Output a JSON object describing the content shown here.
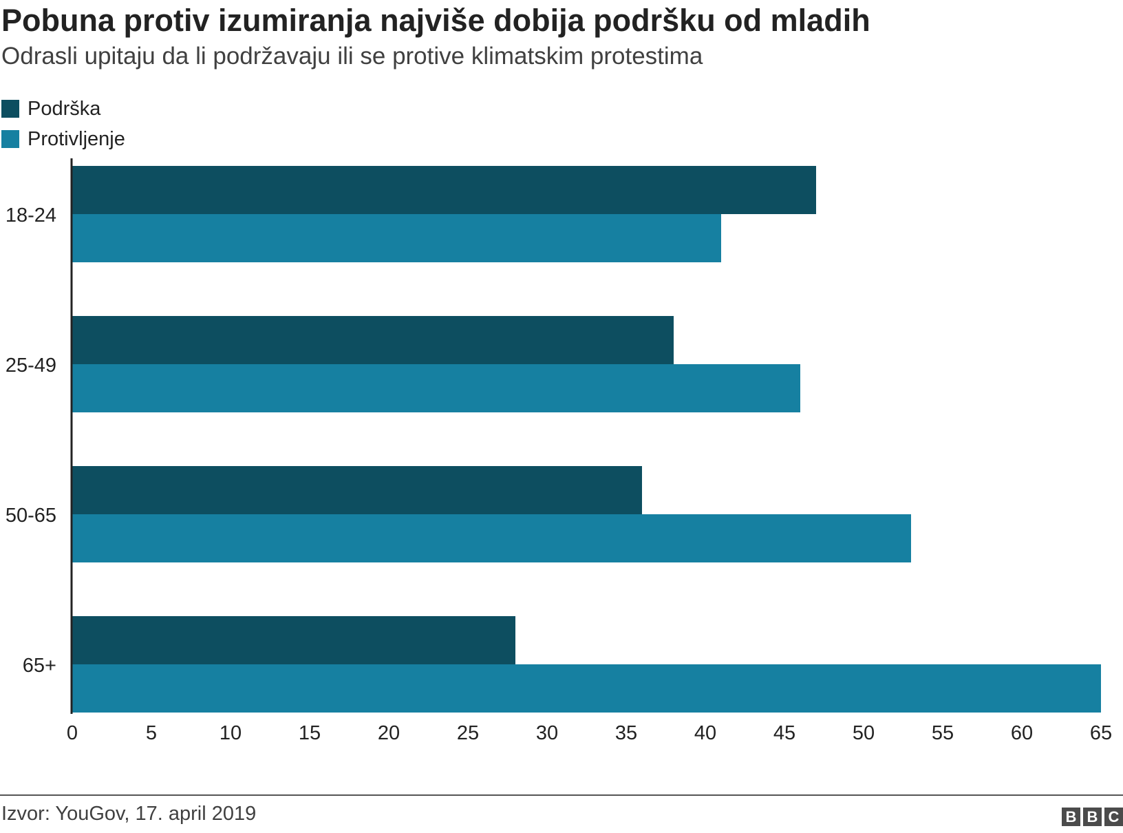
{
  "header": {
    "title": "Pobuna protiv izumiranja najviše dobija podršku od mladih",
    "subtitle": "Odrasli upitaju da li podržavaju ili se protive klimatskim protestima"
  },
  "legend": [
    {
      "label": "Podrška",
      "color": "#0d4e60"
    },
    {
      "label": "Protivljenje",
      "color": "#1680a1"
    }
  ],
  "chart_data": {
    "type": "bar",
    "orientation": "horizontal",
    "categories": [
      "18-24",
      "25-49",
      "50-65",
      "65+"
    ],
    "series": [
      {
        "name": "Podrška",
        "values": [
          47,
          38,
          36,
          28
        ],
        "color": "#0d4e60"
      },
      {
        "name": "Protivljenje",
        "values": [
          41,
          46,
          53,
          65
        ],
        "color": "#1680a1"
      }
    ],
    "xlim": [
      0,
      65
    ],
    "xticks": [
      0,
      5,
      10,
      15,
      20,
      25,
      30,
      35,
      40,
      45,
      50,
      55,
      60,
      65
    ],
    "title": "Pobuna protiv izumiranja najviše dobija podršku od mladih",
    "subtitle": "Odrasli upitaju da li podržavaju ili se protive klimatskim protestima",
    "legend_position": "top-left",
    "grid": false
  },
  "footer": {
    "source": "Izvor: YouGov, 17. april 2019",
    "logo_letters": [
      "B",
      "B",
      "C"
    ]
  }
}
